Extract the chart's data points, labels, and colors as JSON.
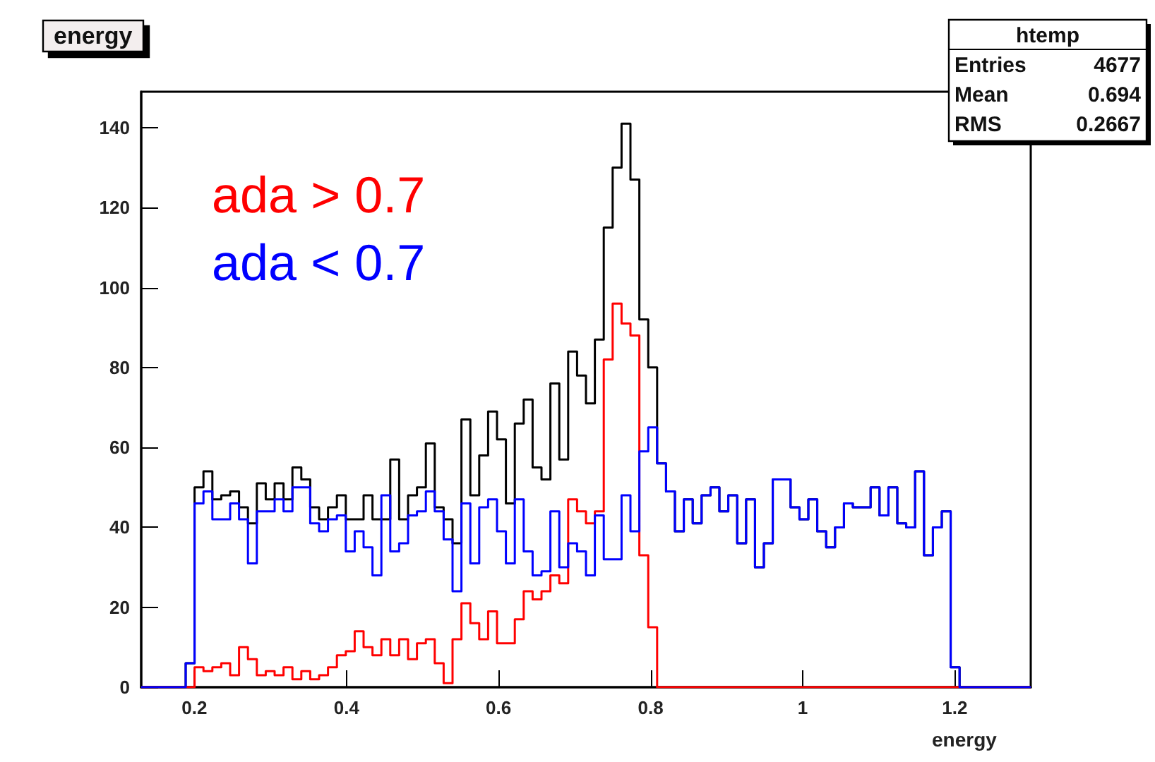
{
  "chart_data": {
    "type": "histogram",
    "title": "energy",
    "xlabel": "energy",
    "bins": [
      0.13,
      0.1417,
      0.1534,
      0.1651,
      0.1768,
      0.1885,
      0.2002,
      0.2119,
      0.2236,
      0.2353,
      0.247,
      0.2587,
      0.2704,
      0.2821,
      0.2938,
      0.3055,
      0.3172,
      0.3289,
      0.3406,
      0.3523,
      0.364,
      0.3757,
      0.3874,
      0.3991,
      0.4108,
      0.4225,
      0.4342,
      0.4459,
      0.4576,
      0.4693,
      0.481,
      0.4927,
      0.5044,
      0.5161,
      0.5278,
      0.5395,
      0.5512,
      0.5629,
      0.5746,
      0.5863,
      0.598,
      0.6097,
      0.6214,
      0.6331,
      0.6448,
      0.6565,
      0.6682,
      0.6799,
      0.6916,
      0.7033,
      0.715,
      0.7267,
      0.7384,
      0.7501,
      0.7618,
      0.7735,
      0.7852,
      0.7969,
      0.8086,
      0.8203,
      0.832,
      0.8437,
      0.8554,
      0.8671,
      0.8788,
      0.8905,
      0.9022,
      0.9139,
      0.9256,
      0.9373,
      0.949,
      0.9607,
      0.9724,
      0.9841,
      0.9958,
      1.0075,
      1.0192,
      1.0309,
      1.0426,
      1.0543,
      1.066,
      1.0777,
      1.0894,
      1.1011,
      1.1128,
      1.1245,
      1.1362,
      1.1479,
      1.1596,
      1.1713,
      1.183,
      1.1947,
      1.2064,
      1.2181,
      1.2298,
      1.2415,
      1.2532,
      1.2649,
      1.2766,
      1.2883,
      1.3
    ],
    "series": [
      {
        "color": "#000000",
        "values": [
          0,
          0,
          0,
          0,
          0,
          6,
          50,
          54,
          47,
          48,
          49,
          45,
          41,
          51,
          47,
          51,
          47,
          55,
          52,
          45,
          42,
          45,
          48,
          42,
          42,
          48,
          42,
          42,
          57,
          42,
          48,
          50,
          61,
          45,
          42,
          36,
          67,
          48,
          58,
          69,
          62,
          46,
          66,
          72,
          55,
          52,
          76,
          57,
          84,
          78,
          71,
          87,
          115,
          130,
          141,
          127,
          92,
          80,
          56,
          49,
          39,
          47,
          41,
          48,
          50,
          44,
          48,
          36,
          47,
          30,
          36,
          52,
          52,
          45,
          42,
          47,
          39,
          35,
          40,
          46,
          45,
          45,
          50,
          43,
          50,
          41,
          40,
          54,
          33,
          40,
          44,
          5,
          0,
          0,
          0,
          0,
          0,
          0,
          0,
          0
        ]
      },
      {
        "name": "ada > 0.7",
        "color": "#ff0000",
        "values": [
          0,
          0,
          0,
          0,
          0,
          0,
          5,
          4,
          5,
          6,
          3,
          10,
          7,
          3,
          4,
          3,
          5,
          2,
          4,
          2,
          3,
          5,
          8,
          9,
          14,
          10,
          8,
          12,
          8,
          12,
          7,
          11,
          12,
          6,
          1,
          12,
          21,
          16,
          12,
          19,
          11,
          11,
          17,
          24,
          22,
          24,
          28,
          26,
          47,
          44,
          41,
          44,
          82,
          96,
          91,
          88,
          33,
          15,
          0,
          0,
          0,
          0,
          0,
          0,
          0,
          0,
          0,
          0,
          0,
          0,
          0,
          0,
          0,
          0,
          0,
          0,
          0,
          0,
          0,
          0,
          0,
          0,
          0,
          0,
          0,
          0,
          0,
          0,
          0,
          0,
          0,
          0,
          0,
          0,
          0,
          0,
          0,
          0,
          0,
          0
        ]
      },
      {
        "name": "ada < 0.7",
        "color": "#0000ff",
        "values": [
          0,
          0,
          0,
          0,
          0,
          6,
          46,
          49,
          42,
          42,
          46,
          42,
          31,
          44,
          44,
          47,
          44,
          50,
          50,
          41,
          39,
          42,
          43,
          34,
          39,
          35,
          28,
          48,
          34,
          36,
          43,
          44,
          49,
          44,
          37,
          24,
          46,
          31,
          45,
          47,
          39,
          31,
          47,
          34,
          28,
          29,
          44,
          30,
          36,
          34,
          28,
          43,
          32,
          32,
          48,
          39,
          59,
          65,
          56,
          49,
          39,
          47,
          41,
          48,
          50,
          44,
          48,
          36,
          47,
          30,
          36,
          52,
          52,
          45,
          42,
          47,
          39,
          35,
          40,
          46,
          45,
          45,
          50,
          43,
          50,
          41,
          40,
          54,
          33,
          40,
          44,
          5,
          0,
          0,
          0,
          0,
          0,
          0,
          0,
          0
        ]
      }
    ],
    "xlim": [
      0.13,
      1.3
    ],
    "ylim": [
      0,
      149
    ],
    "xticks": [
      0.2,
      0.4,
      0.6,
      0.8,
      1,
      1.2
    ],
    "yticks": [
      0,
      20,
      40,
      60,
      80,
      100,
      120,
      140
    ],
    "grid": false,
    "legend": "top left",
    "annotations": [
      "htemp",
      "Entries 4677",
      "Mean 0.694",
      "RMS 0.2667"
    ]
  }
}
